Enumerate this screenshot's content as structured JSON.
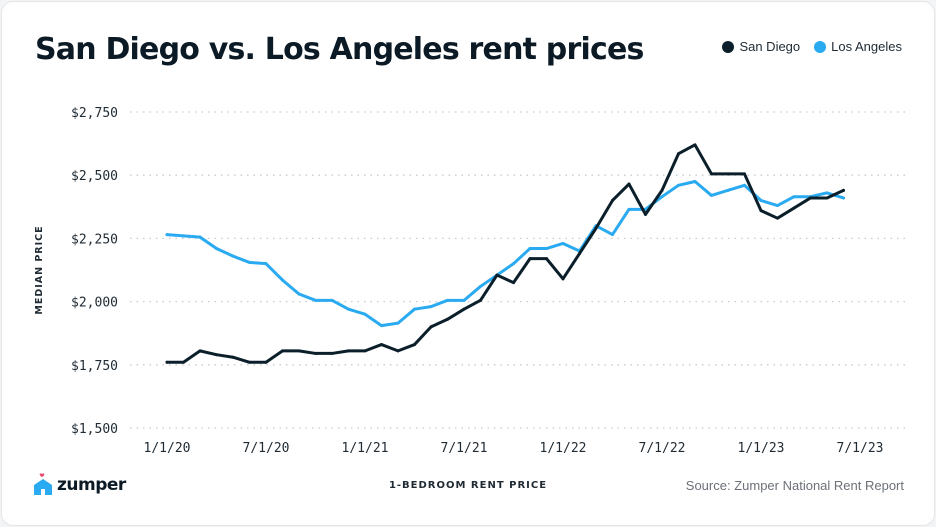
{
  "chart_data": {
    "type": "line",
    "title": "San Diego vs. Los Angeles rent prices",
    "ylabel": "MEDIAN PRICE",
    "xlabel": "1-BEDROOM RENT PRICE",
    "ylim": [
      1500,
      2750
    ],
    "y_ticks": [
      "$1,500",
      "$1,750",
      "$2,000",
      "$2,250",
      "$2,500",
      "$2,750"
    ],
    "y_tick_values": [
      1500,
      1750,
      2000,
      2250,
      2500,
      2750
    ],
    "x_ticks": [
      "1/1/20",
      "7/1/20",
      "1/1/21",
      "7/1/21",
      "1/1/22",
      "7/1/22",
      "1/1/23",
      "7/1/23"
    ],
    "grid": "horizontal dotted",
    "legend": "top-right",
    "x": [
      "2020-01",
      "2020-02",
      "2020-03",
      "2020-04",
      "2020-05",
      "2020-06",
      "2020-07",
      "2020-08",
      "2020-09",
      "2020-10",
      "2020-11",
      "2020-12",
      "2021-01",
      "2021-02",
      "2021-03",
      "2021-04",
      "2021-05",
      "2021-06",
      "2021-07",
      "2021-08",
      "2021-09",
      "2021-10",
      "2021-11",
      "2021-12",
      "2022-01",
      "2022-02",
      "2022-03",
      "2022-04",
      "2022-05",
      "2022-06",
      "2022-07",
      "2022-08",
      "2022-09",
      "2022-10",
      "2022-11",
      "2022-12",
      "2023-01",
      "2023-02",
      "2023-03",
      "2023-04",
      "2023-05",
      "2023-06"
    ],
    "series": [
      {
        "name": "San Diego",
        "color": "#0b1f2a",
        "values": [
          1760,
          1760,
          1805,
          1790,
          1780,
          1760,
          1760,
          1805,
          1805,
          1795,
          1795,
          1805,
          1805,
          1830,
          1805,
          1830,
          1900,
          1930,
          1970,
          2005,
          2105,
          2075,
          2170,
          2170,
          2090,
          2190,
          2290,
          2400,
          2465,
          2345,
          2440,
          2585,
          2620,
          2505,
          2505,
          2505,
          2360,
          2330,
          2370,
          2410,
          2410,
          2440
        ]
      },
      {
        "name": "Los Angeles",
        "color": "#2aaaf0",
        "values": [
          2265,
          2260,
          2255,
          2210,
          2180,
          2155,
          2150,
          2085,
          2030,
          2005,
          2005,
          1970,
          1950,
          1905,
          1915,
          1970,
          1980,
          2005,
          2005,
          2060,
          2105,
          2150,
          2210,
          2210,
          2230,
          2200,
          2300,
          2265,
          2365,
          2365,
          2415,
          2460,
          2475,
          2420,
          2440,
          2460,
          2400,
          2380,
          2415,
          2415,
          2430,
          2410
        ]
      }
    ]
  },
  "footer": {
    "brand": "zumper",
    "source": "Source: Zumper National Rent Report",
    "brand_color": "#2aaaf0",
    "heart_color": "#e84a6f"
  }
}
